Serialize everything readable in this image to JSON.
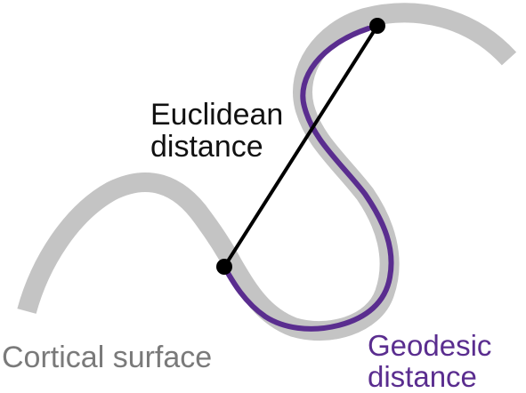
{
  "labels": {
    "euclidean_line1": "Euclidean",
    "euclidean_line2": "distance",
    "cortical_surface": "Cortical surface",
    "geodesic_line1": "Geodesic",
    "geodesic_line2": "distance"
  },
  "colors": {
    "surface": "#c4c4c4",
    "geodesic_path": "#5a2d8f",
    "euclidean_line": "#000000",
    "points": "#000000",
    "euclidean_text": "#111111",
    "cortical_text": "#7a7a7a",
    "geodesic_text": "#5a2d8f"
  }
}
